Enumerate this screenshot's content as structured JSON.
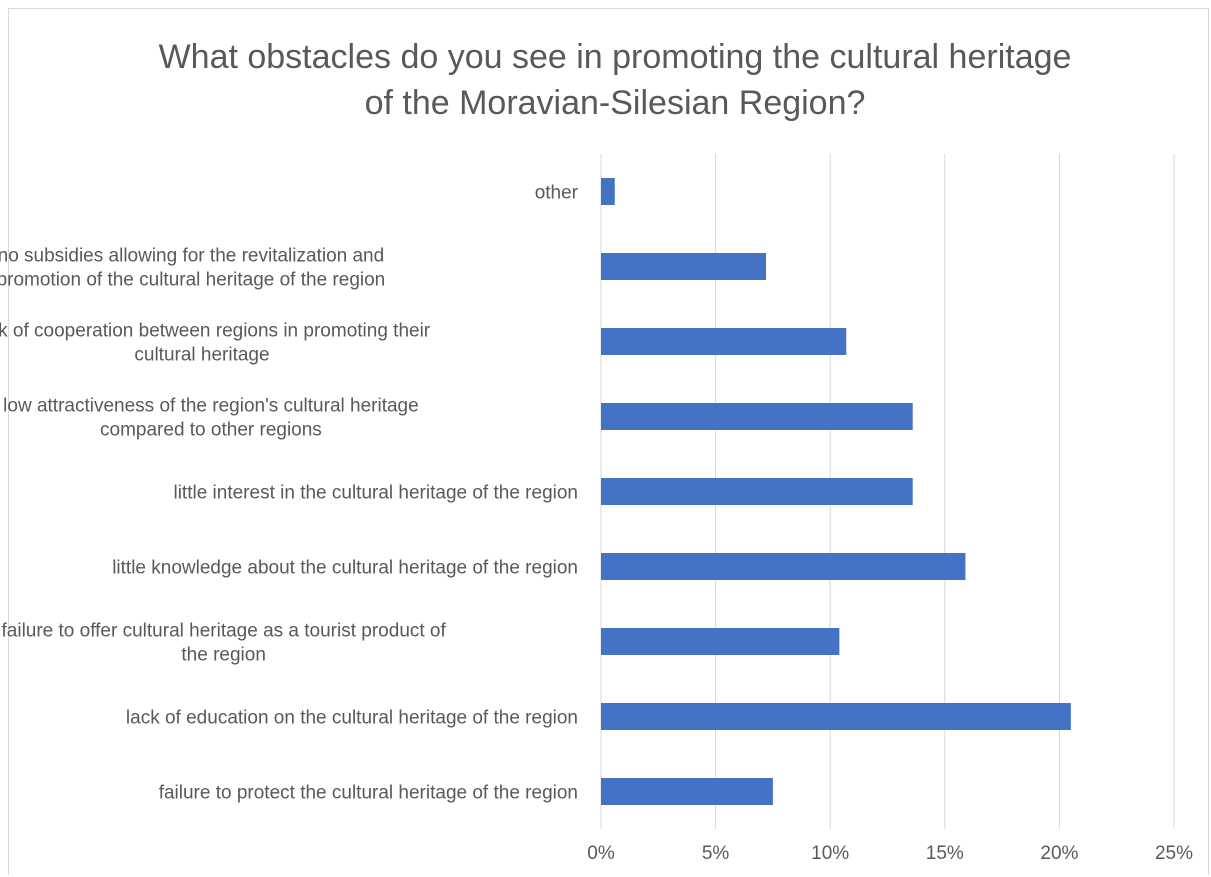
{
  "chart_data": {
    "type": "bar",
    "orientation": "horizontal",
    "title_lines": [
      "What obstacles do you see in promoting the cultural heritage",
      "of the Moravian-Silesian Region?"
    ],
    "categories": [
      [
        "other"
      ],
      [
        "no subsidies allowing for the revitalization and",
        "promotion of the cultural heritage of the region"
      ],
      [
        "lack of cooperation between regions in promoting their",
        "cultural heritage"
      ],
      [
        "low attractiveness of the region's cultural heritage",
        "compared to other regions"
      ],
      [
        "little interest in the cultural heritage of the region"
      ],
      [
        "little knowledge about the cultural heritage of the region"
      ],
      [
        "failure to offer cultural heritage as a tourist product of",
        "the region"
      ],
      [
        "lack of education on the cultural heritage of the region"
      ],
      [
        "failure to protect the cultural heritage of the region"
      ]
    ],
    "values": [
      0.6,
      7.2,
      10.7,
      13.6,
      13.6,
      15.9,
      10.4,
      20.5,
      7.5
    ],
    "xlim": [
      0,
      25
    ],
    "xticks": [
      "0%",
      "5%",
      "10%",
      "15%",
      "20%",
      "25%"
    ],
    "xtick_values": [
      0,
      5,
      10,
      15,
      20,
      25
    ],
    "bar_color": "#4472C4",
    "grid": true,
    "gridline_color": "#d9d9d9",
    "text_color": "#595959",
    "legend": "none"
  }
}
